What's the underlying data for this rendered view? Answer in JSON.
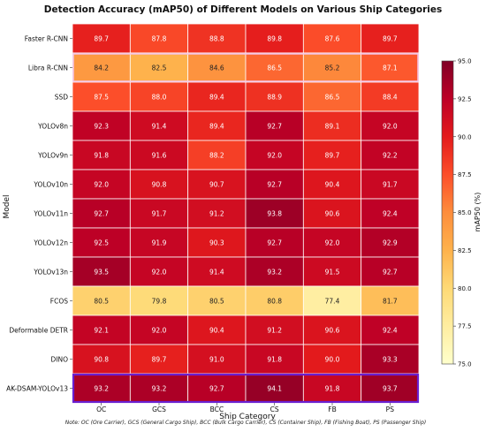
{
  "chart_data": {
    "type": "heatmap",
    "title": "Detection Accuracy (mAP50) of Different Models on Various Ship Categories",
    "xlabel": "Ship Category",
    "ylabel": "Model",
    "x_categories": [
      "OC",
      "GCS",
      "BCC",
      "CS",
      "FB",
      "PS"
    ],
    "y_categories": [
      "Faster R-CNN",
      "Libra R-CNN",
      "SSD",
      "YOLOv8n",
      "YOLOv9n",
      "YOLOv10n",
      "YOLOv11n",
      "YOLOv12n",
      "YOLOv13n",
      "FCOS",
      "Deformable DETR",
      "DINO",
      "AK-DSAM-YOLOv13"
    ],
    "values": [
      [
        89.7,
        87.8,
        88.8,
        89.8,
        87.6,
        89.7
      ],
      [
        84.2,
        82.5,
        84.6,
        86.5,
        85.2,
        87.1
      ],
      [
        87.5,
        88.0,
        89.4,
        88.9,
        86.5,
        88.4
      ],
      [
        92.3,
        91.4,
        89.4,
        92.7,
        89.1,
        92.0
      ],
      [
        91.8,
        91.6,
        88.2,
        92.0,
        89.7,
        92.2
      ],
      [
        92.0,
        90.8,
        90.7,
        92.7,
        90.4,
        91.7
      ],
      [
        92.7,
        91.7,
        91.2,
        93.8,
        90.6,
        92.4
      ],
      [
        92.5,
        91.9,
        90.3,
        92.7,
        92.0,
        92.9
      ],
      [
        93.5,
        92.0,
        91.4,
        93.2,
        91.5,
        92.7
      ],
      [
        80.5,
        79.8,
        80.5,
        80.8,
        77.4,
        81.7
      ],
      [
        92.1,
        92.0,
        90.4,
        91.2,
        90.6,
        92.4
      ],
      [
        90.8,
        89.7,
        91.0,
        91.8,
        90.0,
        93.3
      ],
      [
        93.2,
        93.2,
        92.7,
        94.1,
        91.8,
        93.7
      ]
    ],
    "highlighted_rows": [
      "Libra R-CNN",
      "AK-DSAM-YOLOv13"
    ],
    "highlight_colors": [
      "#f4c2e8",
      "#6a1fd0"
    ],
    "colorbar": {
      "label": "mAP50 (%)",
      "range": [
        75.0,
        95.0
      ],
      "ticks": [
        "75.0",
        "77.5",
        "80.0",
        "82.5",
        "85.0",
        "87.5",
        "90.0",
        "92.5",
        "95.0"
      ],
      "colormap": "YlOrRd"
    },
    "note": "Note: OC (Ore Carrier), GCS (General Cargo Ship), BCC (Bulk Cargo Carrier), CS (Container Ship), FB (Fishing Boat), PS (Passenger Ship)"
  }
}
